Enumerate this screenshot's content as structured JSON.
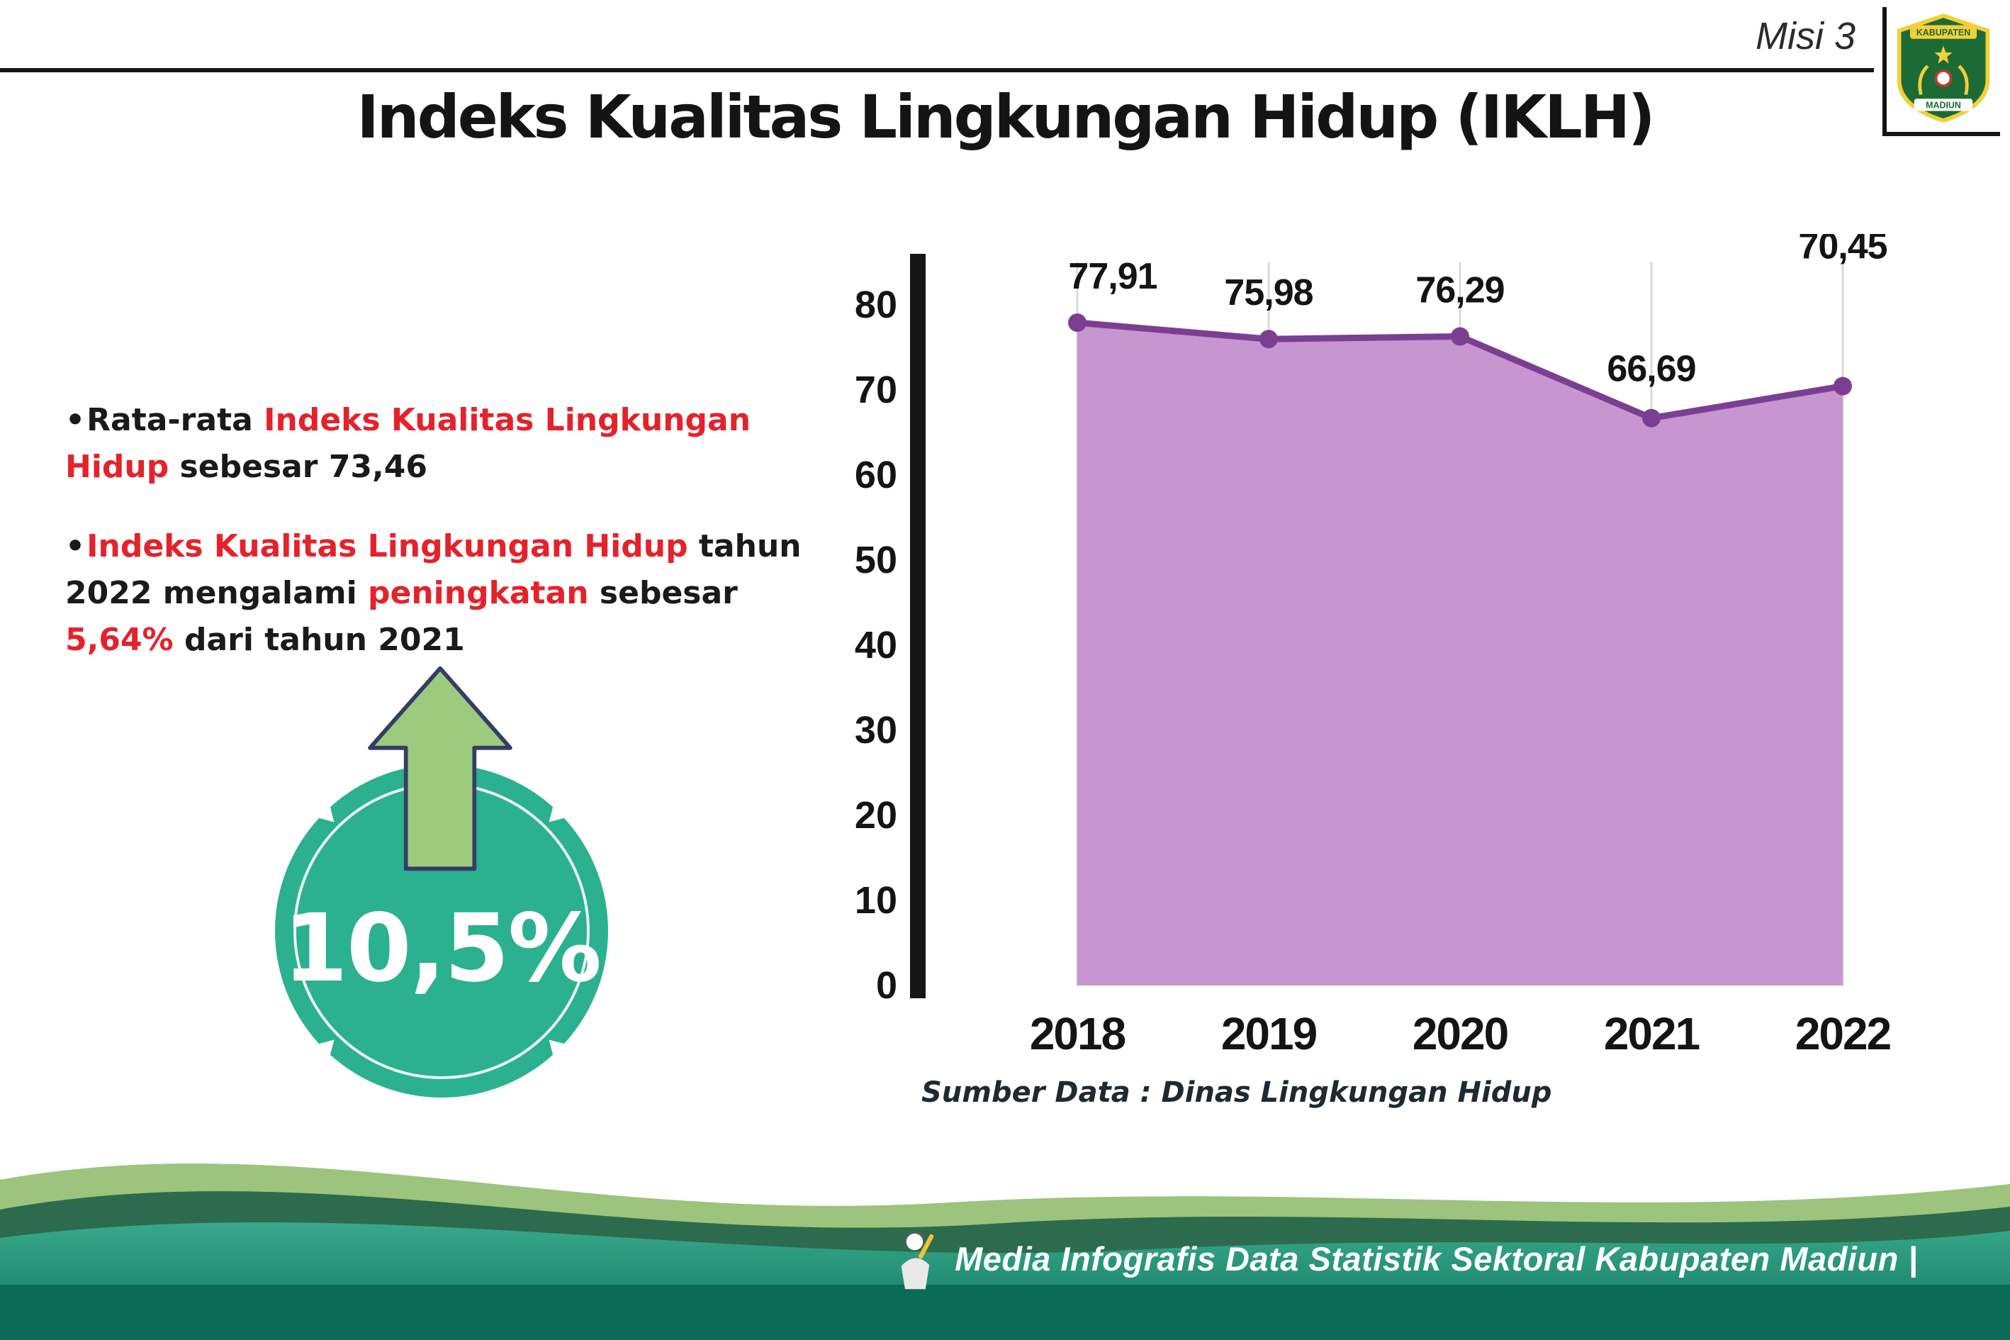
{
  "header": {
    "misi_label": "Misi 3",
    "title": "Indeks Kualitas Lingkungan Hidup (IKLH)"
  },
  "logo": {
    "top_text": "KABUPATEN",
    "bottom_text": "MADIUN"
  },
  "bullets": [
    {
      "segments": [
        {
          "text": "Rata-rata ",
          "em": false
        },
        {
          "text": "Indeks Kualitas Lingkungan Hidup",
          "em": true
        },
        {
          "text": " sebesar 73,46",
          "em": false
        }
      ]
    },
    {
      "segments": [
        {
          "text": "Indeks Kualitas Lingkungan Hidup",
          "em": true
        },
        {
          "text": " tahun 2022 mengalami ",
          "em": false
        },
        {
          "text": "peningkatan",
          "em": true
        },
        {
          "text": " sebesar ",
          "em": false
        },
        {
          "text": "5,64%",
          "em": true
        },
        {
          "text": " dari tahun 2021",
          "em": false
        }
      ]
    }
  ],
  "badge": {
    "value": "10,5%"
  },
  "chart_data": {
    "type": "area",
    "title": "Indeks Kualitas Lingkungan Hidup (IKLH)",
    "categories": [
      "2018",
      "2019",
      "2020",
      "2021",
      "2022"
    ],
    "values": [
      77.91,
      75.98,
      76.29,
      66.69,
      70.45
    ],
    "point_labels": [
      "77,91",
      "75,98",
      "76,29",
      "66,69",
      "70,45"
    ],
    "xlabel": "",
    "ylabel": "",
    "ylim": [
      0,
      80
    ],
    "yticks": [
      0,
      10,
      20,
      30,
      40,
      50,
      60,
      70,
      80
    ],
    "grid": "vertical",
    "legend": "none",
    "line_color": "#7b3f92",
    "fill_color": "#c795cf",
    "marker": "circle"
  },
  "source_note": "Sumber Data : Dinas Lingkungan Hidup",
  "footer": {
    "text": "Media Infografis Data Statistik Sektoral Kabupaten Madiun |"
  },
  "colors": {
    "accent_red": "#e4222b",
    "badge_teal": "#2bb090",
    "arrow_green": "#9ccb7d",
    "chart_purple": "#7b3f92",
    "chart_fill": "#c795cf",
    "footer_teal_dark": "#0a6b57",
    "footer_green_dark": "#2c6b4d",
    "footer_green_light": "#9cc47c"
  }
}
